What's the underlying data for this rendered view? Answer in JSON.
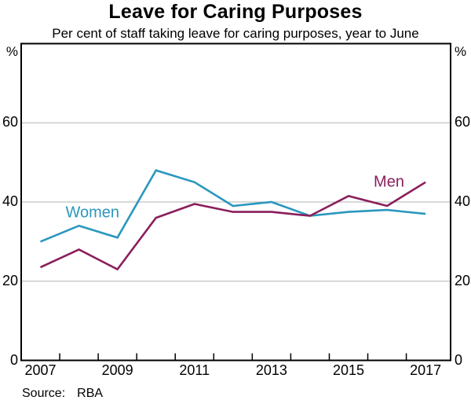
{
  "chart_data": {
    "type": "line",
    "title": "Leave for Caring Purposes",
    "subtitle": "Per cent of staff taking leave for caring purposes, year to June",
    "unit_left": "%",
    "unit_right": "%",
    "x": [
      2007,
      2008,
      2009,
      2010,
      2011,
      2012,
      2013,
      2014,
      2015,
      2016,
      2017
    ],
    "series": [
      {
        "name": "Women",
        "color": "#2a97be",
        "values": [
          30,
          34,
          31,
          48,
          45,
          39,
          40,
          36.5,
          37.5,
          38,
          37
        ],
        "label_anchor": {
          "x": 2008.35,
          "y": 37.2
        }
      },
      {
        "name": "Men",
        "color": "#8a1e5c",
        "values": [
          23.5,
          28,
          23,
          36,
          39.5,
          37.5,
          37.5,
          36.5,
          41.5,
          39,
          45
        ],
        "label_anchor": {
          "x": 2016.05,
          "y": 45
        }
      }
    ],
    "xlim": [
      2006.5,
      2017.65
    ],
    "ylim": [
      0,
      80
    ],
    "grid": true,
    "y_gridlines": [
      20,
      40,
      60
    ],
    "y_axis_labels": [
      {
        "value": 0,
        "label": "0"
      },
      {
        "value": 20,
        "label": "20"
      },
      {
        "value": 40,
        "label": "40"
      },
      {
        "value": 60,
        "label": "60"
      }
    ],
    "x_axis_labels": [
      {
        "value": 2007,
        "label": "2007"
      },
      {
        "value": 2009,
        "label": "2009"
      },
      {
        "value": 2011,
        "label": "2011"
      },
      {
        "value": 2013,
        "label": "2013"
      },
      {
        "value": 2015,
        "label": "2015"
      },
      {
        "value": 2017,
        "label": "2017"
      }
    ],
    "x_minor_ticks": [
      2007.5,
      2008.5,
      2009.5,
      2010.5,
      2011.5,
      2012.5,
      2013.5,
      2014.5,
      2015.5,
      2016.5
    ],
    "colors": {
      "grid": "#b3b3b3",
      "frame": "#000000"
    },
    "legend_position": "inline-labels"
  },
  "footer": {
    "source_label": "Source:",
    "source_value": "RBA"
  }
}
